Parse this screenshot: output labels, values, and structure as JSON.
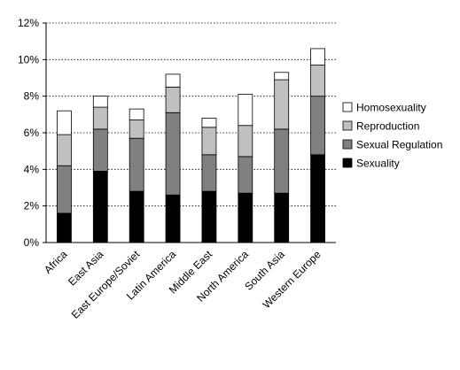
{
  "chart_data": {
    "type": "bar",
    "stacked": true,
    "categories": [
      "Africa",
      "East Asia",
      "East Europe/Soviet",
      "Latin America",
      "Middle East",
      "North America",
      "South Asia",
      "Western Europe"
    ],
    "series": [
      {
        "name": "Sexuality",
        "color": "#000000",
        "values": [
          1.6,
          3.9,
          2.8,
          2.6,
          2.8,
          2.7,
          2.7,
          4.8
        ]
      },
      {
        "name": "Sexual Regulation",
        "color": "#808080",
        "values": [
          2.6,
          2.3,
          2.9,
          4.5,
          2.0,
          2.0,
          3.5,
          3.2
        ]
      },
      {
        "name": "Reproduction",
        "color": "#c0c0c0",
        "values": [
          1.7,
          1.2,
          1.0,
          1.4,
          1.5,
          1.7,
          2.7,
          1.7
        ]
      },
      {
        "name": "Homosexuality",
        "color": "#ffffff",
        "values": [
          1.3,
          0.6,
          0.6,
          0.7,
          0.5,
          1.7,
          0.4,
          0.9
        ]
      }
    ],
    "legend_order": [
      "Homosexuality",
      "Reproduction",
      "Sexual Regulation",
      "Sexuality"
    ],
    "y_ticks": [
      "0%",
      "2%",
      "4%",
      "6%",
      "8%",
      "10%",
      "12%"
    ],
    "ylim": [
      0,
      12
    ],
    "grid": true,
    "legend_position": "right",
    "title": "",
    "xlabel": "",
    "ylabel": ""
  }
}
